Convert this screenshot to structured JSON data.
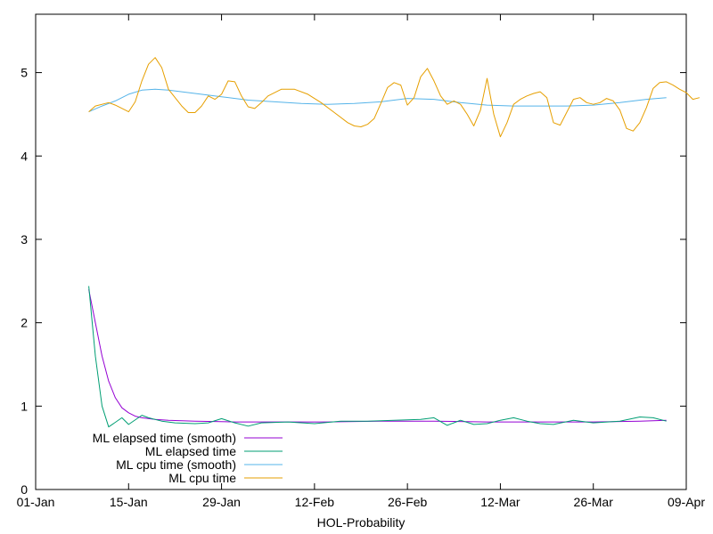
{
  "chart_data": {
    "type": "line",
    "title": "",
    "xlabel": "HOL-Probability",
    "ylabel": "",
    "x_range": [
      "2021-01-01",
      "2021-04-09"
    ],
    "ylim": [
      0,
      5.7
    ],
    "grid": false,
    "legend_position": "bottom-left",
    "x_ticks": [
      {
        "date": "2021-01-01",
        "label": "01-Jan"
      },
      {
        "date": "2021-01-15",
        "label": "15-Jan"
      },
      {
        "date": "2021-01-29",
        "label": "29-Jan"
      },
      {
        "date": "2021-02-12",
        "label": "12-Feb"
      },
      {
        "date": "2021-02-26",
        "label": "26-Feb"
      },
      {
        "date": "2021-03-12",
        "label": "12-Mar"
      },
      {
        "date": "2021-03-26",
        "label": "26-Mar"
      },
      {
        "date": "2021-04-09",
        "label": "09-Apr"
      }
    ],
    "y_ticks": [
      {
        "value": 0,
        "label": "0"
      },
      {
        "value": 1,
        "label": "1"
      },
      {
        "value": 2,
        "label": "2"
      },
      {
        "value": 3,
        "label": "3"
      },
      {
        "value": 4,
        "label": "4"
      },
      {
        "value": 5,
        "label": "5"
      }
    ],
    "series": [
      {
        "name": "ML elapsed time (smooth)",
        "color": "#9400d3",
        "points": [
          [
            "2021-01-09",
            2.4
          ],
          [
            "2021-01-10",
            2.0
          ],
          [
            "2021-01-11",
            1.6
          ],
          [
            "2021-01-12",
            1.3
          ],
          [
            "2021-01-13",
            1.1
          ],
          [
            "2021-01-14",
            0.98
          ],
          [
            "2021-01-15",
            0.92
          ],
          [
            "2021-01-16",
            0.88
          ],
          [
            "2021-01-17",
            0.86
          ],
          [
            "2021-01-19",
            0.84
          ],
          [
            "2021-01-21",
            0.83
          ],
          [
            "2021-01-25",
            0.82
          ],
          [
            "2021-01-31",
            0.81
          ],
          [
            "2021-02-06",
            0.81
          ],
          [
            "2021-02-14",
            0.81
          ],
          [
            "2021-02-22",
            0.82
          ],
          [
            "2021-03-02",
            0.82
          ],
          [
            "2021-03-10",
            0.81
          ],
          [
            "2021-03-18",
            0.81
          ],
          [
            "2021-03-26",
            0.81
          ],
          [
            "2021-04-02",
            0.82
          ],
          [
            "2021-04-06",
            0.83
          ]
        ]
      },
      {
        "name": "ML elapsed time",
        "color": "#009e73",
        "points": [
          [
            "2021-01-09",
            2.44
          ],
          [
            "2021-01-10",
            1.6
          ],
          [
            "2021-01-11",
            1.0
          ],
          [
            "2021-01-12",
            0.75
          ],
          [
            "2021-01-14",
            0.86
          ],
          [
            "2021-01-15",
            0.78
          ],
          [
            "2021-01-17",
            0.89
          ],
          [
            "2021-01-18",
            0.86
          ],
          [
            "2021-01-20",
            0.82
          ],
          [
            "2021-01-22",
            0.8
          ],
          [
            "2021-01-25",
            0.79
          ],
          [
            "2021-01-27",
            0.8
          ],
          [
            "2021-01-29",
            0.85
          ],
          [
            "2021-01-31",
            0.8
          ],
          [
            "2021-02-02",
            0.76
          ],
          [
            "2021-02-04",
            0.8
          ],
          [
            "2021-02-08",
            0.81
          ],
          [
            "2021-02-12",
            0.79
          ],
          [
            "2021-02-16",
            0.82
          ],
          [
            "2021-02-20",
            0.82
          ],
          [
            "2021-02-24",
            0.83
          ],
          [
            "2021-02-28",
            0.84
          ],
          [
            "2021-03-02",
            0.86
          ],
          [
            "2021-03-04",
            0.77
          ],
          [
            "2021-03-06",
            0.83
          ],
          [
            "2021-03-08",
            0.78
          ],
          [
            "2021-03-10",
            0.79
          ],
          [
            "2021-03-12",
            0.83
          ],
          [
            "2021-03-14",
            0.86
          ],
          [
            "2021-03-16",
            0.82
          ],
          [
            "2021-03-18",
            0.79
          ],
          [
            "2021-03-20",
            0.78
          ],
          [
            "2021-03-23",
            0.83
          ],
          [
            "2021-03-26",
            0.8
          ],
          [
            "2021-03-30",
            0.82
          ],
          [
            "2021-04-02",
            0.87
          ],
          [
            "2021-04-04",
            0.86
          ],
          [
            "2021-04-06",
            0.82
          ]
        ]
      },
      {
        "name": "ML cpu time (smooth)",
        "color": "#56b4e9",
        "points": [
          [
            "2021-01-09",
            4.53
          ],
          [
            "2021-01-11",
            4.6
          ],
          [
            "2021-01-13",
            4.66
          ],
          [
            "2021-01-15",
            4.74
          ],
          [
            "2021-01-17",
            4.79
          ],
          [
            "2021-01-19",
            4.8
          ],
          [
            "2021-01-21",
            4.79
          ],
          [
            "2021-01-23",
            4.77
          ],
          [
            "2021-01-25",
            4.75
          ],
          [
            "2021-01-29",
            4.71
          ],
          [
            "2021-02-02",
            4.67
          ],
          [
            "2021-02-06",
            4.65
          ],
          [
            "2021-02-10",
            4.63
          ],
          [
            "2021-02-14",
            4.62
          ],
          [
            "2021-02-18",
            4.63
          ],
          [
            "2021-02-22",
            4.65
          ],
          [
            "2021-02-26",
            4.69
          ],
          [
            "2021-03-02",
            4.68
          ],
          [
            "2021-03-06",
            4.64
          ],
          [
            "2021-03-10",
            4.61
          ],
          [
            "2021-03-14",
            4.6
          ],
          [
            "2021-03-18",
            4.6
          ],
          [
            "2021-03-22",
            4.6
          ],
          [
            "2021-03-26",
            4.61
          ],
          [
            "2021-03-30",
            4.64
          ],
          [
            "2021-04-03",
            4.68
          ],
          [
            "2021-04-06",
            4.7
          ]
        ]
      },
      {
        "name": "ML cpu time",
        "color": "#e69f00",
        "points": [
          [
            "2021-01-09",
            4.53
          ],
          [
            "2021-01-10",
            4.6
          ],
          [
            "2021-01-12",
            4.64
          ],
          [
            "2021-01-13",
            4.61
          ],
          [
            "2021-01-15",
            4.53
          ],
          [
            "2021-01-16",
            4.65
          ],
          [
            "2021-01-17",
            4.9
          ],
          [
            "2021-01-18",
            5.1
          ],
          [
            "2021-01-19",
            5.18
          ],
          [
            "2021-01-20",
            5.06
          ],
          [
            "2021-01-21",
            4.8
          ],
          [
            "2021-01-23",
            4.6
          ],
          [
            "2021-01-24",
            4.52
          ],
          [
            "2021-01-25",
            4.52
          ],
          [
            "2021-01-26",
            4.6
          ],
          [
            "2021-01-27",
            4.72
          ],
          [
            "2021-01-28",
            4.68
          ],
          [
            "2021-01-29",
            4.74
          ],
          [
            "2021-01-30",
            4.9
          ],
          [
            "2021-01-31",
            4.89
          ],
          [
            "2021-02-01",
            4.72
          ],
          [
            "2021-02-02",
            4.59
          ],
          [
            "2021-02-03",
            4.57
          ],
          [
            "2021-02-04",
            4.64
          ],
          [
            "2021-02-05",
            4.72
          ],
          [
            "2021-02-07",
            4.8
          ],
          [
            "2021-02-09",
            4.8
          ],
          [
            "2021-02-11",
            4.74
          ],
          [
            "2021-02-13",
            4.64
          ],
          [
            "2021-02-15",
            4.52
          ],
          [
            "2021-02-17",
            4.4
          ],
          [
            "2021-02-18",
            4.36
          ],
          [
            "2021-02-19",
            4.35
          ],
          [
            "2021-02-20",
            4.38
          ],
          [
            "2021-02-21",
            4.45
          ],
          [
            "2021-02-22",
            4.63
          ],
          [
            "2021-02-23",
            4.82
          ],
          [
            "2021-02-24",
            4.88
          ],
          [
            "2021-02-25",
            4.85
          ],
          [
            "2021-02-26",
            4.61
          ],
          [
            "2021-02-27",
            4.7
          ],
          [
            "2021-02-28",
            4.95
          ],
          [
            "2021-03-01",
            5.05
          ],
          [
            "2021-03-02",
            4.9
          ],
          [
            "2021-03-03",
            4.72
          ],
          [
            "2021-03-04",
            4.62
          ],
          [
            "2021-03-05",
            4.66
          ],
          [
            "2021-03-06",
            4.62
          ],
          [
            "2021-03-07",
            4.5
          ],
          [
            "2021-03-08",
            4.36
          ],
          [
            "2021-03-09",
            4.55
          ],
          [
            "2021-03-10",
            4.93
          ],
          [
            "2021-03-11",
            4.5
          ],
          [
            "2021-03-12",
            4.23
          ],
          [
            "2021-03-13",
            4.4
          ],
          [
            "2021-03-14",
            4.62
          ],
          [
            "2021-03-15",
            4.68
          ],
          [
            "2021-03-16",
            4.72
          ],
          [
            "2021-03-17",
            4.75
          ],
          [
            "2021-03-18",
            4.77
          ],
          [
            "2021-03-19",
            4.7
          ],
          [
            "2021-03-20",
            4.4
          ],
          [
            "2021-03-21",
            4.37
          ],
          [
            "2021-03-23",
            4.68
          ],
          [
            "2021-03-24",
            4.7
          ],
          [
            "2021-03-25",
            4.64
          ],
          [
            "2021-03-26",
            4.62
          ],
          [
            "2021-03-27",
            4.64
          ],
          [
            "2021-03-28",
            4.69
          ],
          [
            "2021-03-29",
            4.66
          ],
          [
            "2021-03-30",
            4.55
          ],
          [
            "2021-03-31",
            4.33
          ],
          [
            "2021-04-01",
            4.3
          ],
          [
            "2021-04-02",
            4.4
          ],
          [
            "2021-04-03",
            4.58
          ],
          [
            "2021-04-04",
            4.81
          ],
          [
            "2021-04-05",
            4.88
          ],
          [
            "2021-04-06",
            4.89
          ],
          [
            "2021-04-07",
            4.85
          ],
          [
            "2021-04-08",
            4.8
          ],
          [
            "2021-04-09",
            4.76
          ],
          [
            "2021-04-10",
            4.68
          ],
          [
            "2021-04-11",
            4.7
          ]
        ]
      }
    ]
  }
}
